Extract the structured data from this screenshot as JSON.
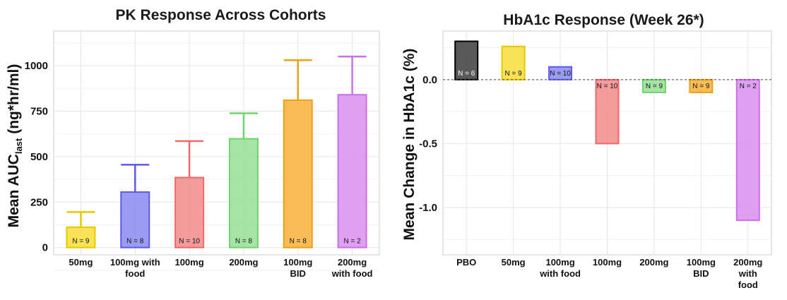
{
  "chart_data": [
    {
      "type": "bar",
      "title": "PK Response Across Cohorts",
      "ylabel_main": "Mean AUC",
      "ylabel_sub": "last",
      "ylabel_unit": "(ng*hr/ml)",
      "categories": [
        [
          "50mg"
        ],
        [
          "100mg with",
          "food"
        ],
        [
          "100mg"
        ],
        [
          "200mg"
        ],
        [
          "100mg",
          "BID"
        ],
        [
          "200mg",
          "with food"
        ]
      ],
      "values": [
        112,
        305,
        385,
        598,
        810,
        840
      ],
      "error_upper": [
        195,
        455,
        585,
        738,
        1030,
        1050
      ],
      "n_labels": [
        "N = 9",
        "N = 8",
        "N = 10",
        "N = 8",
        "N = 8",
        "N = 2"
      ],
      "colors": [
        "#f7de3a",
        "#8a8af0",
        "#f28a8a",
        "#95df95",
        "#f7b23a",
        "#d98ff0"
      ],
      "stroke_colors": [
        "#e8c800",
        "#5b5bea",
        "#ee6a6a",
        "#6fd46f",
        "#f0a010",
        "#cc6fe8"
      ],
      "yticks": [
        0,
        250,
        500,
        750,
        1000
      ],
      "ylim": [
        -40,
        1190
      ]
    },
    {
      "type": "bar",
      "title": "HbA1c Response (Week 26*)",
      "ylabel": "Mean Change in HbA1c (%)",
      "categories": [
        [
          "PBO"
        ],
        [
          "50mg"
        ],
        [
          "100mg",
          "with food"
        ],
        [
          "100mg"
        ],
        [
          "200mg"
        ],
        [
          "100mg",
          "BID"
        ],
        [
          "200mg",
          "with",
          "food"
        ]
      ],
      "values": [
        0.3,
        0.26,
        0.1,
        -0.5,
        -0.1,
        -0.1,
        -1.1
      ],
      "n_labels": [
        "N = 6",
        "N = 9",
        "N = 10",
        "N = 10",
        "N = 9",
        "N = 9",
        "N = 2"
      ],
      "colors": [
        "#3c3c3c",
        "#f7de3a",
        "#8a8af0",
        "#f28a8a",
        "#95df95",
        "#f7b23a",
        "#d98ff0"
      ],
      "stroke_colors": [
        "#000000",
        "#e8c800",
        "#5b5bea",
        "#ee6a6a",
        "#6fd46f",
        "#f0a010",
        "#cc6fe8"
      ],
      "yticks": [
        0.0,
        -0.5,
        -1.0
      ],
      "ytick_labels": [
        "0.0",
        "-0.5",
        "-1.0"
      ],
      "ylim": [
        -1.37,
        0.38
      ],
      "reference_line": 0.0
    }
  ]
}
